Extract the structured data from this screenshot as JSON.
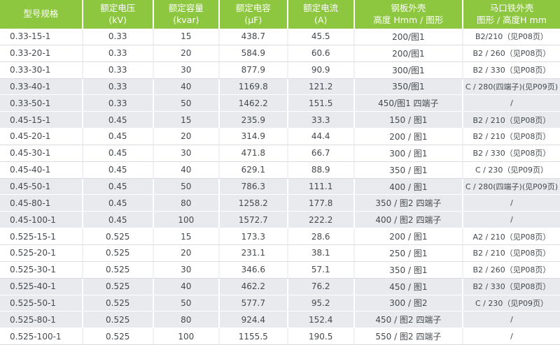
{
  "colors": {
    "header_green": "#8dc63f",
    "header_text": "#ffffff",
    "row_shaded_bg": "#e8eaed",
    "row_border": "#d9dce0",
    "body_text": "#45494d"
  },
  "table": {
    "columns": [
      {
        "line1": "型号规格",
        "line2": ""
      },
      {
        "line1": "额定电压",
        "line2": "(kV)"
      },
      {
        "line1": "额定容量",
        "line2": "(kvar)"
      },
      {
        "line1": "额定电容",
        "line2": "(μF)"
      },
      {
        "line1": "额定电流",
        "line2": "(A)"
      },
      {
        "line1": "钢板外壳",
        "line2": "高度 Hmm / 图形"
      },
      {
        "line1": "马口铁外壳",
        "line2": "图形 / 高度H mm"
      }
    ],
    "rows": [
      {
        "shaded": false,
        "cells": [
          "0.33-15-1",
          "0.33",
          "15",
          "438.7",
          "45.5",
          "200/图1",
          "B2/210（见P08页）"
        ]
      },
      {
        "shaded": false,
        "cells": [
          "0.33-20-1",
          "0.33",
          "20",
          "584.9",
          "60.6",
          "200/图1",
          "B2 / 260（见P08页）"
        ]
      },
      {
        "shaded": false,
        "cells": [
          "0.33-30-1",
          "0.33",
          "30",
          "877.9",
          "90.9",
          "300/图1",
          "B2 / 330（见P08页）"
        ]
      },
      {
        "shaded": true,
        "cells": [
          "0.33-40-1",
          "0.33",
          "40",
          "1169.8",
          "121.2",
          "350/图1",
          "C / 280(四端子)(见P09页)"
        ]
      },
      {
        "shaded": true,
        "cells": [
          "0.33-50-1",
          "0.33",
          "50",
          "1462.2",
          "151.5",
          "450/图1 四端子",
          "/"
        ]
      },
      {
        "shaded": true,
        "cells": [
          "0.45-15-1",
          "0.45",
          "15",
          "235.9",
          "33.3",
          "150 / 图1",
          "B2 / 210（见P08页）"
        ]
      },
      {
        "shaded": false,
        "cells": [
          "0.45-20-1",
          "0.45",
          "20",
          "314.9",
          "44.4",
          "200 / 图1",
          "B2 / 210（见P08页）"
        ]
      },
      {
        "shaded": false,
        "cells": [
          "0.45-30-1",
          "0.45",
          "30",
          "471.8",
          "66.7",
          "300 / 图1",
          "B2 / 330（见P08页）"
        ]
      },
      {
        "shaded": false,
        "cells": [
          "0.45-40-1",
          "0.45",
          "40",
          "629.1",
          "88.9",
          "350 / 图1",
          "C / 230（见P09页）"
        ]
      },
      {
        "shaded": true,
        "cells": [
          "0.45-50-1",
          "0.45",
          "50",
          "786.3",
          "111.1",
          "400 / 图1",
          "C / 280(四端子)(见P09页)"
        ]
      },
      {
        "shaded": true,
        "cells": [
          "0.45-80-1",
          "0.45",
          "80",
          "1258.2",
          "177.8",
          "350 / 图2 四端子",
          "/"
        ]
      },
      {
        "shaded": true,
        "cells": [
          "0.45-100-1",
          "0.45",
          "100",
          "1572.7",
          "222.2",
          "400 / 图2 四端子",
          "/"
        ]
      },
      {
        "shaded": false,
        "cells": [
          "0.525-15-1",
          "0.525",
          "15",
          "173.3",
          "28.6",
          "200 / 图1",
          "A2 / 210（见P08页）"
        ]
      },
      {
        "shaded": false,
        "cells": [
          "0.525-20-1",
          "0.525",
          "20",
          "231.1",
          "38.1",
          "250 / 图1",
          "B2 / 210（见P08页）"
        ]
      },
      {
        "shaded": false,
        "cells": [
          "0.525-30-1",
          "0.525",
          "30",
          "346.6",
          "57.1",
          "350 / 图1",
          "B2 / 260（见P08页）"
        ]
      },
      {
        "shaded": true,
        "cells": [
          "0.525-40-1",
          "0.525",
          "40",
          "462.2",
          "76.2",
          "450 / 图1",
          "B2 / 330（见P08页）"
        ]
      },
      {
        "shaded": true,
        "cells": [
          "0.525-50-1",
          "0.525",
          "50",
          "577.7",
          "95.2",
          "300 / 图2",
          "C / 230（见P09页）"
        ]
      },
      {
        "shaded": true,
        "cells": [
          "0.525-80-1",
          "0.525",
          "80",
          "924.4",
          "152.4",
          "450 / 图2 四端子",
          "/"
        ]
      },
      {
        "shaded": false,
        "cells": [
          "0.525-100-1",
          "0.525",
          "100",
          "1155.5",
          "190.5",
          "550 / 图2 四端子",
          "/"
        ]
      }
    ]
  }
}
